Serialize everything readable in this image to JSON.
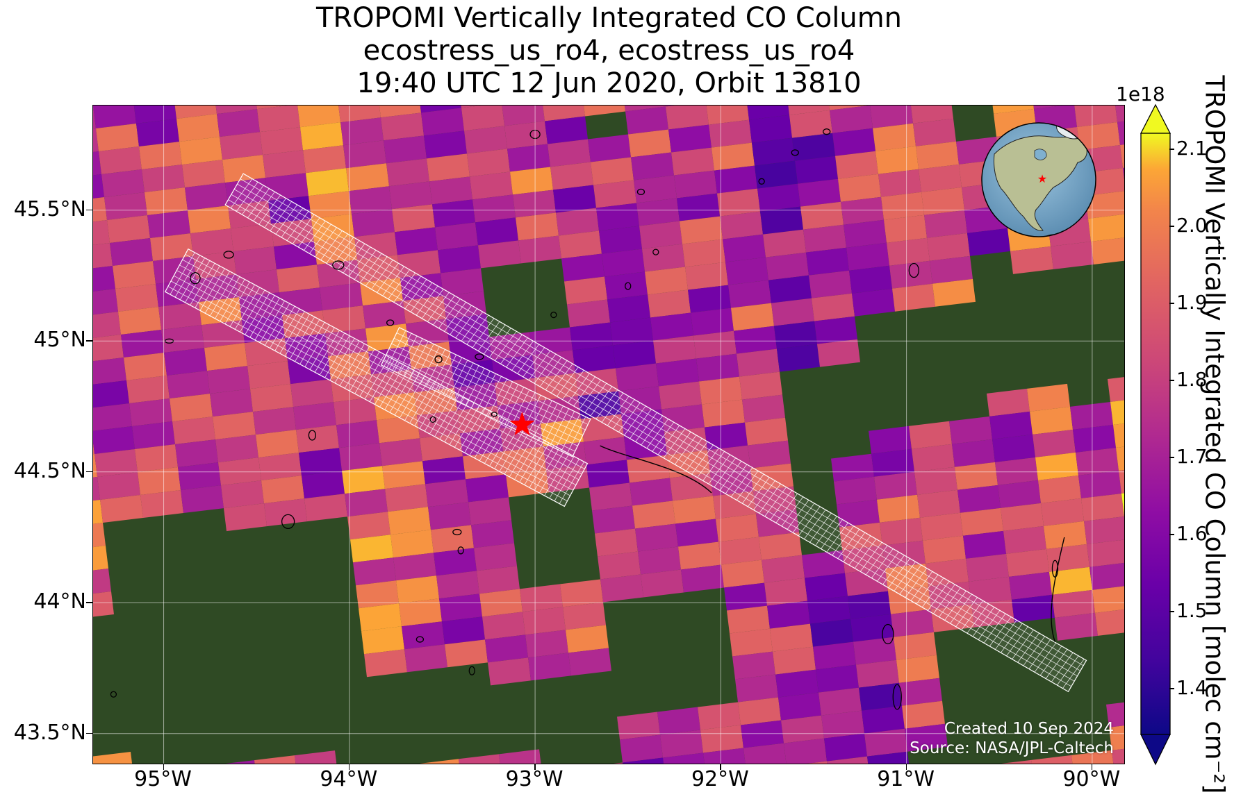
{
  "title": {
    "line1": "TROPOMI Vertically Integrated CO Column",
    "line2": "ecostress_us_ro4, ecostress_us_ro4",
    "line3": "19:40 UTC 12 Jun 2020, Orbit 13810"
  },
  "map": {
    "lon_range": [
      -95.38,
      -89.82
    ],
    "lat_range": [
      43.38,
      45.9
    ],
    "lat_ticks": [
      {
        "value": 45.5,
        "label": "45.5°N"
      },
      {
        "value": 45.0,
        "label": "45°N"
      },
      {
        "value": 44.5,
        "label": "44.5°N"
      },
      {
        "value": 44.0,
        "label": "44°N"
      },
      {
        "value": 43.5,
        "label": "43.5°N"
      }
    ],
    "lon_ticks": [
      {
        "value": -95,
        "label": "95°W"
      },
      {
        "value": -94,
        "label": "94°W"
      },
      {
        "value": -93,
        "label": "93°W"
      },
      {
        "value": -92,
        "label": "92°W"
      },
      {
        "value": -91,
        "label": "91°W"
      },
      {
        "value": -90,
        "label": "90°W"
      }
    ],
    "site_marker": {
      "lon": -93.07,
      "lat": 44.68,
      "color": "#ff0000"
    },
    "gridlines": true,
    "background": "satellite imagery (dark green farmland)"
  },
  "colorbar": {
    "label": "TROPOMI Vertically Integrated CO Column [molec cm⁻²]",
    "exponent": "1e18",
    "range": [
      1.34,
      2.12
    ],
    "extend": "both",
    "colormap": "plasma",
    "ticks": [
      "1.4",
      "1.5",
      "1.6",
      "1.7",
      "1.8",
      "1.9",
      "2.0",
      "2.1"
    ],
    "tick_values": [
      1.4,
      1.5,
      1.6,
      1.7,
      1.8,
      1.9,
      2.0,
      2.1
    ]
  },
  "credits": {
    "created": "Created 10 Sep 2024",
    "source": "Source: NASA/JPL-Caltech"
  },
  "inset": {
    "type": "globe locator",
    "marker_color": "#ff0000"
  }
}
